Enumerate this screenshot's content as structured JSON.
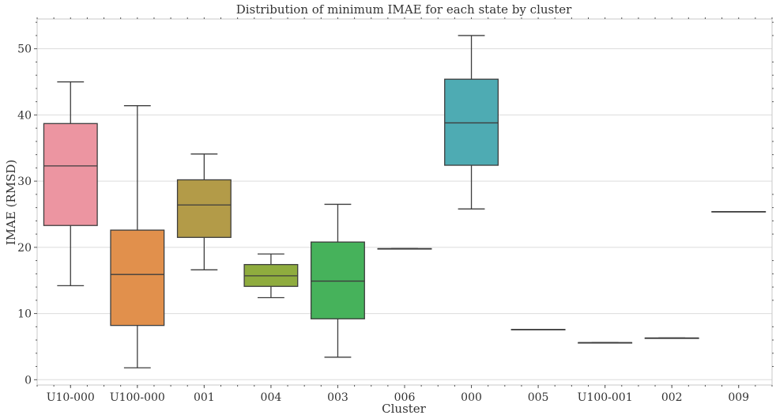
{
  "chart_data": {
    "type": "boxplot",
    "title": "Distribution of minimum IMAE for each state by cluster",
    "xlabel": "Cluster",
    "ylabel": "IMAE (RMSD)",
    "ylim": [
      -0.8,
      54.5
    ],
    "yticks": [
      0,
      10,
      20,
      30,
      40,
      50
    ],
    "grid": true,
    "categories": [
      "U10-000",
      "U100-000",
      "001",
      "004",
      "003",
      "006",
      "000",
      "005",
      "U100-001",
      "002",
      "009"
    ],
    "boxes": [
      {
        "category": "U10-000",
        "min": 14.2,
        "q1": 23.3,
        "median": 32.3,
        "q3": 38.7,
        "max": 45.0,
        "color": "#ec95a1"
      },
      {
        "category": "U100-000",
        "min": 1.8,
        "q1": 8.2,
        "median": 15.9,
        "q3": 22.6,
        "max": 41.4,
        "color": "#e1904c"
      },
      {
        "category": "001",
        "min": 16.6,
        "q1": 21.5,
        "median": 26.4,
        "q3": 30.2,
        "max": 34.1,
        "color": "#b39b48"
      },
      {
        "category": "004",
        "min": 12.4,
        "q1": 14.1,
        "median": 15.7,
        "q3": 17.4,
        "max": 19.0,
        "color": "#8fac3e"
      },
      {
        "category": "003",
        "min": 3.4,
        "q1": 9.2,
        "median": 14.9,
        "q3": 20.8,
        "max": 26.5,
        "color": "#46b25b"
      },
      {
        "category": "006",
        "min": 19.8,
        "q1": 19.8,
        "median": 19.8,
        "q3": 19.8,
        "max": 19.8,
        "color": "#45ae99"
      },
      {
        "category": "000",
        "min": 25.8,
        "q1": 32.4,
        "median": 38.8,
        "q3": 45.4,
        "max": 52.0,
        "color": "#4eabb3"
      },
      {
        "category": "005",
        "min": 7.6,
        "q1": 7.6,
        "median": 7.6,
        "q3": 7.6,
        "max": 7.6,
        "color": "#4fa6cf"
      },
      {
        "category": "U100-001",
        "min": 5.6,
        "q1": 5.6,
        "median": 5.6,
        "q3": 5.6,
        "max": 5.6,
        "color": "#8ba1db"
      },
      {
        "category": "002",
        "min": 6.3,
        "q1": 6.3,
        "median": 6.3,
        "q3": 6.3,
        "max": 6.3,
        "color": "#c795d9"
      },
      {
        "category": "009",
        "min": 25.4,
        "q1": 25.4,
        "median": 25.4,
        "q3": 25.4,
        "max": 25.4,
        "color": "#e58fc9"
      }
    ]
  }
}
